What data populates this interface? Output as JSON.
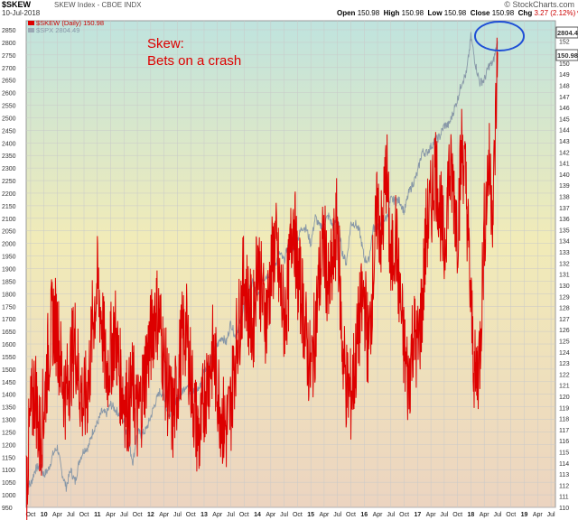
{
  "header": {
    "symbol": "$SKEW",
    "description": "SKEW Index - CBOE  INDX",
    "date": "10-Jul-2018",
    "brand": "© StockCharts.com",
    "open_label": "Open",
    "open": "150.98",
    "high_label": "High",
    "high": "150.98",
    "low_label": "Low",
    "low": "150.98",
    "close_label": "Close",
    "close": "150.98",
    "chg_label": "Chg",
    "chg": "3.27 (2.12%)▼"
  },
  "legend": {
    "skew": "$SKEW (Daily) 150.98",
    "spx": "$SPX 2804.49"
  },
  "annotation": {
    "line1": "Skew:",
    "line2": "Bets on a crash"
  },
  "chart_data": {
    "type": "line",
    "title": "",
    "x_tick_labels": [
      "Oct",
      "10",
      "Apr",
      "Jul",
      "Oct",
      "11",
      "Apr",
      "Jul",
      "Oct",
      "12",
      "Apr",
      "Jul",
      "Oct",
      "13",
      "Apr",
      "Jul",
      "Oct",
      "14",
      "Apr",
      "Jul",
      "Oct",
      "15",
      "Apr",
      "Jul",
      "Oct",
      "16",
      "Apr",
      "Jul",
      "Oct",
      "17",
      "Apr",
      "Jul",
      "Oct",
      "18",
      "Apr",
      "Jul",
      "Oct",
      "19",
      "Apr",
      "Jul"
    ],
    "x_range": [
      "2009-09",
      "2019-08"
    ],
    "left_axis": {
      "label": "$SPX",
      "min": 950,
      "max": 2850,
      "step": 50
    },
    "right_axis": {
      "label": "$SKEW",
      "min": 110,
      "max": 153,
      "step": 1
    },
    "right_axis_last_labels": {
      "spx": "2804.49",
      "skew": "150.98"
    },
    "series": [
      {
        "name": "$SKEW (Daily)",
        "axis": "right",
        "color": "#dd0000",
        "points": [
          [
            "2009-09",
            112
          ],
          [
            "2009-10",
            118
          ],
          [
            "2009-11",
            121
          ],
          [
            "2009-12",
            116
          ],
          [
            "2010-01",
            119
          ],
          [
            "2010-02",
            124
          ],
          [
            "2010-03",
            127
          ],
          [
            "2010-04",
            126
          ],
          [
            "2010-05",
            122
          ],
          [
            "2010-06",
            120
          ],
          [
            "2010-07",
            123
          ],
          [
            "2010-08",
            125
          ],
          [
            "2010-09",
            121
          ],
          [
            "2010-10",
            119
          ],
          [
            "2010-11",
            121
          ],
          [
            "2010-12",
            127
          ],
          [
            "2011-01",
            130
          ],
          [
            "2011-02",
            127
          ],
          [
            "2011-03",
            122
          ],
          [
            "2011-04",
            124
          ],
          [
            "2011-05",
            126
          ],
          [
            "2011-06",
            122
          ],
          [
            "2011-07",
            120
          ],
          [
            "2011-08",
            119
          ],
          [
            "2011-09",
            121
          ],
          [
            "2011-10",
            118
          ],
          [
            "2011-11",
            120
          ],
          [
            "2011-12",
            123
          ],
          [
            "2012-01",
            125
          ],
          [
            "2012-02",
            128
          ],
          [
            "2012-03",
            127
          ],
          [
            "2012-04",
            123
          ],
          [
            "2012-05",
            120
          ],
          [
            "2012-06",
            118
          ],
          [
            "2012-07",
            121
          ],
          [
            "2012-08",
            125
          ],
          [
            "2012-09",
            126
          ],
          [
            "2012-10",
            122
          ],
          [
            "2012-11",
            118
          ],
          [
            "2012-12",
            116
          ],
          [
            "2013-01",
            120
          ],
          [
            "2013-02",
            122
          ],
          [
            "2013-03",
            124
          ],
          [
            "2013-04",
            121
          ],
          [
            "2013-05",
            118
          ],
          [
            "2013-06",
            117
          ],
          [
            "2013-07",
            119
          ],
          [
            "2013-08",
            124
          ],
          [
            "2013-09",
            127
          ],
          [
            "2013-10",
            131
          ],
          [
            "2013-11",
            128
          ],
          [
            "2013-12",
            126
          ],
          [
            "2014-01",
            133
          ],
          [
            "2014-02",
            129
          ],
          [
            "2014-03",
            127
          ],
          [
            "2014-04",
            131
          ],
          [
            "2014-05",
            134
          ],
          [
            "2014-06",
            130
          ],
          [
            "2014-07",
            127
          ],
          [
            "2014-08",
            130
          ],
          [
            "2014-09",
            137
          ],
          [
            "2014-10",
            131
          ],
          [
            "2014-11",
            129
          ],
          [
            "2014-12",
            125
          ],
          [
            "2015-01",
            122
          ],
          [
            "2015-02",
            126
          ],
          [
            "2015-03",
            131
          ],
          [
            "2015-04",
            134
          ],
          [
            "2015-05",
            129
          ],
          [
            "2015-06",
            132
          ],
          [
            "2015-07",
            136
          ],
          [
            "2015-08",
            125
          ],
          [
            "2015-09",
            121
          ],
          [
            "2015-10",
            120
          ],
          [
            "2015-11",
            123
          ],
          [
            "2015-12",
            127
          ],
          [
            "2016-01",
            129
          ],
          [
            "2016-02",
            124
          ],
          [
            "2016-03",
            131
          ],
          [
            "2016-04",
            137
          ],
          [
            "2016-05",
            134
          ],
          [
            "2016-06",
            141
          ],
          [
            "2016-07",
            131
          ],
          [
            "2016-08",
            135
          ],
          [
            "2016-09",
            129
          ],
          [
            "2016-10",
            124
          ],
          [
            "2016-11",
            121
          ],
          [
            "2016-12",
            126
          ],
          [
            "2017-01",
            124
          ],
          [
            "2017-02",
            128
          ],
          [
            "2017-03",
            135
          ],
          [
            "2017-04",
            137
          ],
          [
            "2017-05",
            141
          ],
          [
            "2017-06",
            137
          ],
          [
            "2017-07",
            133
          ],
          [
            "2017-08",
            140
          ],
          [
            "2017-09",
            139
          ],
          [
            "2017-10",
            135
          ],
          [
            "2017-11",
            143
          ],
          [
            "2017-12",
            138
          ],
          [
            "2018-01",
            128
          ],
          [
            "2018-02",
            121
          ],
          [
            "2018-03",
            124
          ],
          [
            "2018-04",
            135
          ],
          [
            "2018-05",
            141
          ],
          [
            "2018-06",
            137
          ],
          [
            "2018-07",
            150.98
          ]
        ]
      },
      {
        "name": "$SPX",
        "axis": "left",
        "color": "#8898a8",
        "points": [
          [
            "2009-09",
            1050
          ],
          [
            "2009-10",
            1040
          ],
          [
            "2009-11",
            1100
          ],
          [
            "2009-12",
            1115
          ],
          [
            "2010-01",
            1080
          ],
          [
            "2010-02",
            1100
          ],
          [
            "2010-03",
            1160
          ],
          [
            "2010-04",
            1190
          ],
          [
            "2010-05",
            1090
          ],
          [
            "2010-06",
            1030
          ],
          [
            "2010-07",
            1100
          ],
          [
            "2010-08",
            1050
          ],
          [
            "2010-09",
            1140
          ],
          [
            "2010-10",
            1180
          ],
          [
            "2010-11",
            1190
          ],
          [
            "2010-12",
            1255
          ],
          [
            "2011-01",
            1285
          ],
          [
            "2011-02",
            1330
          ],
          [
            "2011-03",
            1320
          ],
          [
            "2011-04",
            1360
          ],
          [
            "2011-05",
            1340
          ],
          [
            "2011-06",
            1320
          ],
          [
            "2011-07",
            1290
          ],
          [
            "2011-08",
            1210
          ],
          [
            "2011-09",
            1130
          ],
          [
            "2011-10",
            1250
          ],
          [
            "2011-11",
            1240
          ],
          [
            "2011-12",
            1260
          ],
          [
            "2012-01",
            1310
          ],
          [
            "2012-02",
            1365
          ],
          [
            "2012-03",
            1410
          ],
          [
            "2012-04",
            1395
          ],
          [
            "2012-05",
            1310
          ],
          [
            "2012-06",
            1360
          ],
          [
            "2012-07",
            1380
          ],
          [
            "2012-08",
            1405
          ],
          [
            "2012-09",
            1440
          ],
          [
            "2012-10",
            1410
          ],
          [
            "2012-11",
            1415
          ],
          [
            "2012-12",
            1425
          ],
          [
            "2013-01",
            1500
          ],
          [
            "2013-02",
            1515
          ],
          [
            "2013-03",
            1570
          ],
          [
            "2013-04",
            1595
          ],
          [
            "2013-05",
            1630
          ],
          [
            "2013-06",
            1605
          ],
          [
            "2013-07",
            1685
          ],
          [
            "2013-08",
            1630
          ],
          [
            "2013-09",
            1680
          ],
          [
            "2013-10",
            1755
          ],
          [
            "2013-11",
            1805
          ],
          [
            "2013-12",
            1845
          ],
          [
            "2014-01",
            1780
          ],
          [
            "2014-02",
            1860
          ],
          [
            "2014-03",
            1870
          ],
          [
            "2014-04",
            1885
          ],
          [
            "2014-05",
            1920
          ],
          [
            "2014-06",
            1960
          ],
          [
            "2014-07",
            1930
          ],
          [
            "2014-08",
            2000
          ],
          [
            "2014-09",
            1970
          ],
          [
            "2014-10",
            2015
          ],
          [
            "2014-11",
            2065
          ],
          [
            "2014-12",
            2060
          ],
          [
            "2015-01",
            1995
          ],
          [
            "2015-02",
            2105
          ],
          [
            "2015-03",
            2065
          ],
          [
            "2015-04",
            2085
          ],
          [
            "2015-05",
            2110
          ],
          [
            "2015-06",
            2065
          ],
          [
            "2015-07",
            2105
          ],
          [
            "2015-08",
            1970
          ],
          [
            "2015-09",
            1920
          ],
          [
            "2015-10",
            2080
          ],
          [
            "2015-11",
            2080
          ],
          [
            "2015-12",
            2045
          ],
          [
            "2016-01",
            1940
          ],
          [
            "2016-02",
            1930
          ],
          [
            "2016-03",
            2060
          ],
          [
            "2016-04",
            2065
          ],
          [
            "2016-05",
            2095
          ],
          [
            "2016-06",
            2100
          ],
          [
            "2016-07",
            2175
          ],
          [
            "2016-08",
            2170
          ],
          [
            "2016-09",
            2170
          ],
          [
            "2016-10",
            2125
          ],
          [
            "2016-11",
            2200
          ],
          [
            "2016-12",
            2240
          ],
          [
            "2017-01",
            2280
          ],
          [
            "2017-02",
            2365
          ],
          [
            "2017-03",
            2360
          ],
          [
            "2017-04",
            2385
          ],
          [
            "2017-05",
            2410
          ],
          [
            "2017-06",
            2425
          ],
          [
            "2017-07",
            2470
          ],
          [
            "2017-08",
            2470
          ],
          [
            "2017-09",
            2520
          ],
          [
            "2017-10",
            2575
          ],
          [
            "2017-11",
            2645
          ],
          [
            "2017-12",
            2675
          ],
          [
            "2018-01",
            2825
          ],
          [
            "2018-02",
            2715
          ],
          [
            "2018-03",
            2640
          ],
          [
            "2018-04",
            2650
          ],
          [
            "2018-05",
            2705
          ],
          [
            "2018-06",
            2720
          ],
          [
            "2018-07",
            2804.49
          ]
        ]
      }
    ],
    "grid": true,
    "background": "gradient teal-to-yellow-to-tan",
    "highlight": {
      "shape": "ellipse",
      "color": "#1f4fd6",
      "around": "2018 peak"
    }
  }
}
